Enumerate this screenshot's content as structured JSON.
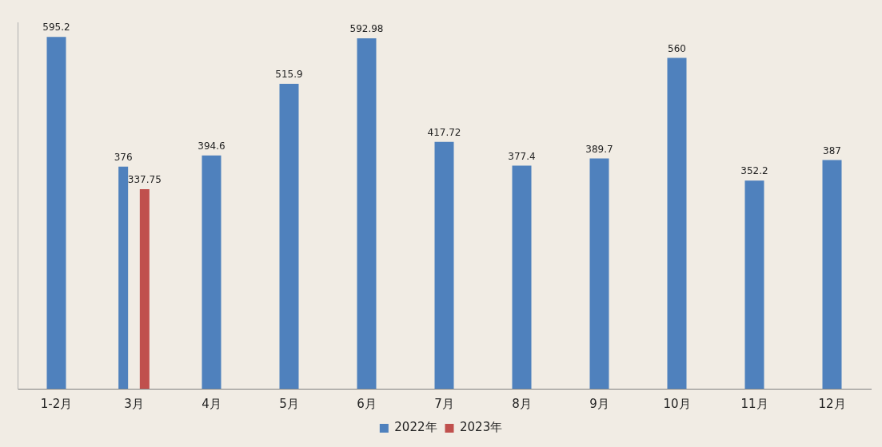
{
  "chart_data": {
    "type": "bar",
    "categories": [
      "1-2月",
      "3月",
      "4月",
      "5月",
      "6月",
      "7月",
      "8月",
      "9月",
      "10月",
      "11月",
      "12月"
    ],
    "series": [
      {
        "name": "2022年",
        "color": "#4f81bd",
        "values": [
          595.2,
          376,
          394.6,
          515.9,
          592.98,
          417.72,
          377.4,
          389.7,
          560,
          352.2,
          387
        ]
      },
      {
        "name": "2023年",
        "color": "#c0504d",
        "values": [
          null,
          337.75,
          null,
          null,
          null,
          null,
          null,
          null,
          null,
          null,
          null
        ]
      }
    ],
    "ylim": [
      0,
      620
    ],
    "grid": false,
    "legend": "bottom",
    "data_labels": true,
    "tick_labels": "x"
  }
}
